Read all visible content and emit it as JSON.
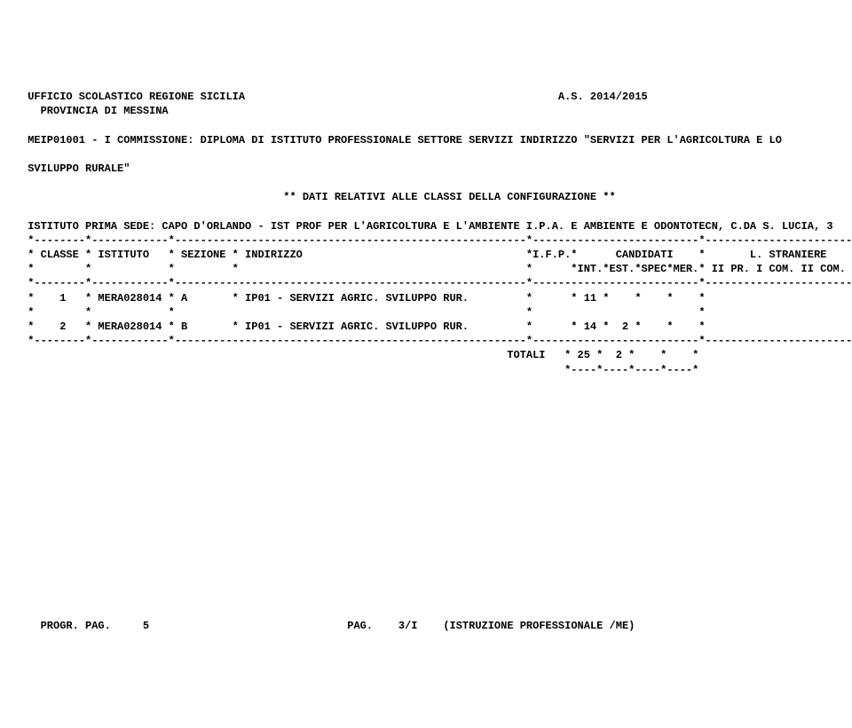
{
  "header": {
    "line1_left": " UFFICIO SCOLASTICO REGIONE SICILIA",
    "line1_right": "A.S. 2014/2015",
    "line2": "   PROVINCIA DI MESSINA",
    "commission": " MEIP01001 - I COMMISSIONE: DIPLOMA DI ISTITUTO PROFESSIONALE SETTORE SERVIZI INDIRIZZO \"SERVIZI PER L'AGRICOLTURA E LO",
    "commission2": " SVILUPPO RURALE\"",
    "dati": "                                         ** DATI RELATIVI ALLE CLASSI DELLA CONFIGURAZIONE **",
    "sede": " ISTITUTO PRIMA SEDE: CAPO D'ORLANDO - IST PROF PER L'AGRICOLTURA E L'AMBIENTE I.P.A. E AMBIENTE E ODONTOTECN, C.DA S. LUCIA, 3"
  },
  "table": {
    "sep_top": " *--------*------------*-------------------------------------------------------*--------------------------*-----------------------*",
    "head1": " * CLASSE * ISTITUTO   * SEZIONE * INDIRIZZO                                   *I.F.P.*      CANDIDATI    *       L. STRANIERE    *",
    "head2": " *        *            *         *                                             *      *INT.*EST.*SPEC*MER.* II PR. I COM. II COM. *",
    "sep_mid": " *--------*------------*-------------------------------------------------------*--------------------------*-----------------------*",
    "row1": " *    1   * MERA028014 * A       * IP01 - SERVIZI AGRIC. SVILUPPO RUR.         *      * 11 *    *    *    *                       *",
    "row_blank": " *        *            *                                                       *                          *                       *",
    "row2": " *    2   * MERA028014 * B       * IP01 - SERVIZI AGRIC. SVILUPPO RUR.         *      * 14 *  2 *    *    *                       *",
    "sep_bot": " *--------*------------*-------------------------------------------------------*--------------------------*-----------------------*",
    "totali": "                                                                            TOTALI   * 25 *  2 *    *    *",
    "totali_sep": "                                                                                     *----*----*----*----*"
  },
  "footer": {
    "left": "   PROGR. PAG.     5",
    "mid": "PAG.    3/I",
    "right": "(ISTRUZIONE PROFESSIONALE /ME)"
  }
}
